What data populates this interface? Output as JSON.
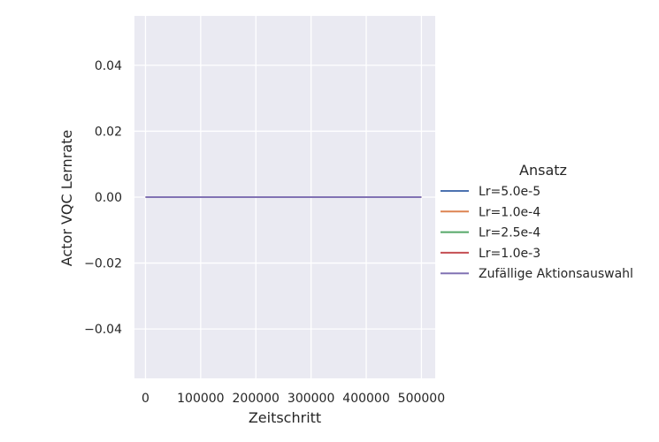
{
  "chart_data": {
    "type": "line",
    "xlabel": "Zeitschritt",
    "ylabel": "Actor VQC Lernrate",
    "xlim": [
      -20000,
      525000
    ],
    "ylim": [
      -0.055,
      0.055
    ],
    "xticks": [
      0,
      100000,
      200000,
      300000,
      400000,
      500000
    ],
    "xtick_labels": [
      "0",
      "100000",
      "200000",
      "300000",
      "400000",
      "500000"
    ],
    "yticks": [
      -0.04,
      -0.02,
      0.0,
      0.02,
      0.04
    ],
    "ytick_labels": [
      "−0.04",
      "−0.02",
      "0.00",
      "0.02",
      "0.04"
    ],
    "grid": true,
    "background": "#eaeaf2",
    "legend": {
      "title": "Ansatz",
      "placement": "right outside"
    },
    "series": [
      {
        "name": "Lr=5.0e-5",
        "color": "#4c72b0",
        "x": [
          0,
          500000
        ],
        "y": [
          0,
          0
        ]
      },
      {
        "name": "Lr=1.0e-4",
        "color": "#dd8452",
        "x": [
          0,
          500000
        ],
        "y": [
          0,
          0
        ]
      },
      {
        "name": "Lr=2.5e-4",
        "color": "#55a868",
        "x": [
          0,
          500000
        ],
        "y": [
          0,
          0
        ]
      },
      {
        "name": "Lr=1.0e-3",
        "color": "#c44e52",
        "x": [
          0,
          500000
        ],
        "y": [
          0,
          0
        ]
      },
      {
        "name": "Zufällige Aktionsauswahl",
        "color": "#8172b3",
        "x": [
          0,
          500000
        ],
        "y": [
          0,
          0
        ]
      }
    ]
  }
}
